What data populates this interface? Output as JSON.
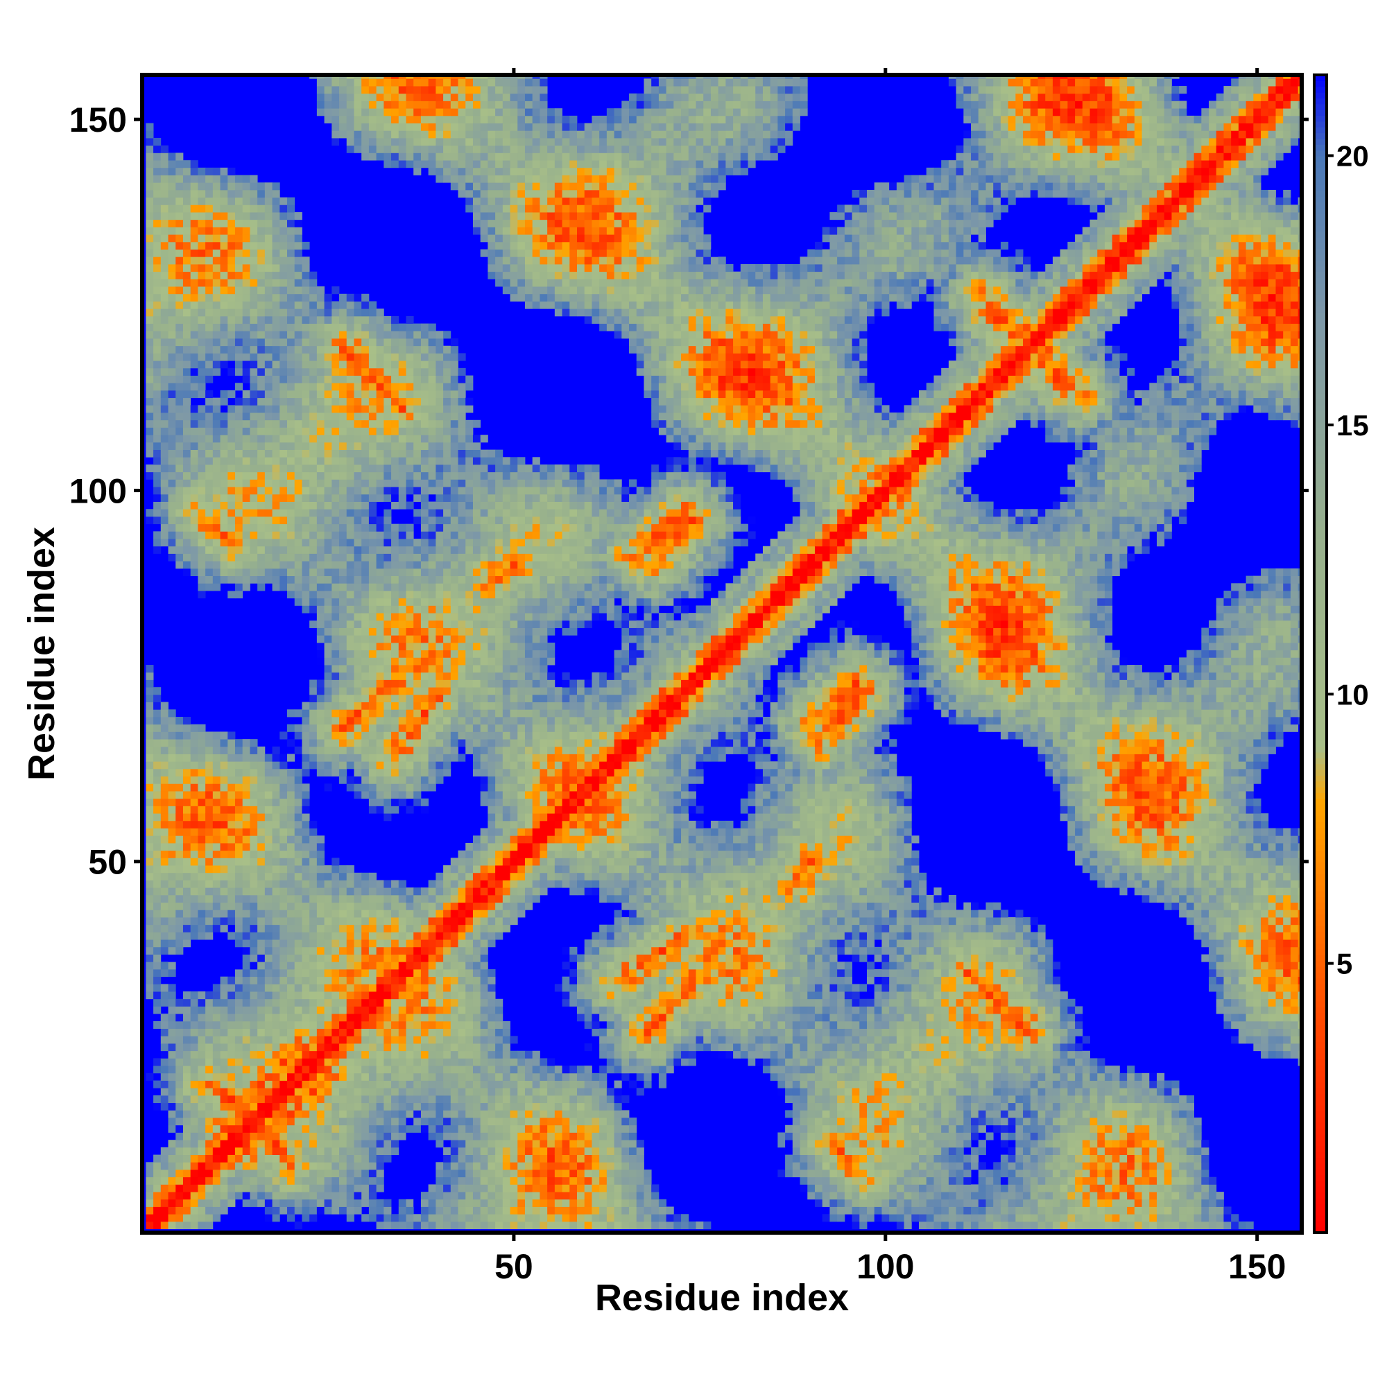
{
  "chart_data": {
    "type": "heatmap",
    "title": "",
    "xlabel": "Residue index",
    "ylabel": "Residue index",
    "n_residues": 156,
    "xlim": [
      1,
      156
    ],
    "ylim": [
      1,
      156
    ],
    "x_ticks": [
      50,
      100,
      150
    ],
    "y_ticks": [
      50,
      100,
      150
    ],
    "colorbar": {
      "min": 0,
      "max": 21.5,
      "ticks": [
        5,
        10,
        15,
        20
      ],
      "stops": [
        {
          "value": 0,
          "color": "#ff0000"
        },
        {
          "value": 4,
          "color": "#ff4a00"
        },
        {
          "value": 8,
          "color": "#ffa500"
        },
        {
          "value": 9,
          "color": "#a8bf88"
        },
        {
          "value": 13,
          "color": "#97b08d"
        },
        {
          "value": 17,
          "color": "#7d98a8"
        },
        {
          "value": 20,
          "color": "#4a78b8"
        },
        {
          "value": 21.5,
          "color": "#0000ff"
        }
      ]
    },
    "contact_segments": [
      {
        "start": [
          11,
          14
        ],
        "end": [
          21,
          25
        ],
        "note": "anti-diagonal band near origin"
      },
      {
        "start": [
          20,
          9
        ],
        "end": [
          12,
          18
        ]
      },
      {
        "start": [
          27,
          119
        ],
        "end": [
          35,
          111
        ]
      },
      {
        "start": [
          27,
          68
        ],
        "end": [
          36,
          76
        ]
      },
      {
        "start": [
          64,
          34
        ],
        "end": [
          73,
          40
        ]
      },
      {
        "start": [
          66,
          91
        ],
        "end": [
          73,
          97
        ]
      },
      {
        "start": [
          90,
          69
        ],
        "end": [
          96,
          74
        ]
      },
      {
        "start": [
          111,
          35
        ],
        "end": [
          119,
          28
        ]
      },
      {
        "start": [
          114,
          124
        ],
        "end": [
          121,
          118
        ]
      },
      {
        "start": [
          119,
          121
        ],
        "end": [
          126,
          113
        ]
      },
      {
        "start": [
          8,
          97
        ],
        "end": [
          12,
          93
        ]
      },
      {
        "start": [
          47,
          88
        ],
        "end": [
          50,
          90
        ]
      }
    ],
    "diagonal_width_residues": 4
  },
  "colors": {
    "background": "#ffffff",
    "far": "#0000ff",
    "contact": "#ff0000",
    "axis": "#000000"
  }
}
